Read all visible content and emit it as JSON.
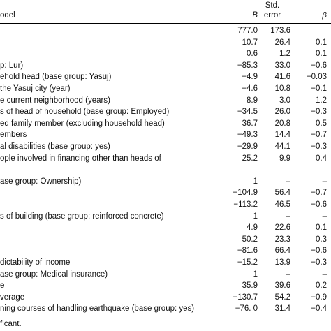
{
  "header": {
    "model": "odel",
    "b": "B",
    "se_line1": "Std.",
    "se_line2": "error",
    "beta": "β"
  },
  "rows": [
    {
      "label": "",
      "b": "777.0",
      "se": "173.6",
      "beta": ""
    },
    {
      "label": "",
      "b": "10.7",
      "se": "26.4",
      "beta": "0.1"
    },
    {
      "label": "",
      "b": "0.6",
      "se": "1.2",
      "beta": "0.1"
    },
    {
      "label": "p: Lur)",
      "b": "−85.3",
      "se": "33.0",
      "beta": "−0.6"
    },
    {
      "label": "ehold head (base group: Yasuj)",
      "b": "−4.9",
      "se": "41.6",
      "beta": "−0.03"
    },
    {
      "label": " the Yasuj city (year)",
      "b": "−4.6",
      "se": "10.8",
      "beta": "−0.1"
    },
    {
      "label": "e current neighborhood (years)",
      "b": "8.9",
      "se": "3.0",
      "beta": "1.2"
    },
    {
      "label": "s of head of household (base group: Employed)",
      "b": "−34.5",
      "se": "26.0",
      "beta": "−0.3"
    },
    {
      "label": "ed family member (excluding household head)",
      "b": "36.7",
      "se": "20.8",
      "beta": "0.5"
    },
    {
      "label": "embers",
      "b": "−49.3",
      "se": "14.4",
      "beta": "−0.7"
    },
    {
      "label": "al disabilities (base group: yes)",
      "b": "−29.9",
      "se": "44.1",
      "beta": "−0.3"
    },
    {
      "label": "ople involved in financing other than heads of",
      "b": "25.2",
      "se": "9.9",
      "beta": "0.4"
    },
    {
      "label": "",
      "b": "",
      "se": "",
      "beta": ""
    },
    {
      "label": "ase group: Ownership)",
      "b": "1",
      "se": "–",
      "beta": "–"
    },
    {
      "label": "",
      "b": "−104.9",
      "se": "56.4",
      "beta": "−0.7"
    },
    {
      "label": "",
      "b": "−113.2",
      "se": "46.5",
      "beta": "−0.6"
    },
    {
      "label": "s of building (base group: reinforced concrete)",
      "b": "1",
      "se": "–",
      "beta": "–"
    },
    {
      "label": "",
      "b": "4.9",
      "se": "22.6",
      "beta": "0.1"
    },
    {
      "label": "",
      "b": "50.2",
      "se": "23.3",
      "beta": "0.3"
    },
    {
      "label": "",
      "b": "−81.6",
      "se": "66.4",
      "beta": "−0.6"
    },
    {
      "label": "dictability of income",
      "b": "−15.2",
      "se": "13.9",
      "beta": "−0.3"
    },
    {
      "label": "ase group: Medical insurance)",
      "b": "1",
      "se": "–",
      "beta": "–"
    },
    {
      "label": "e",
      "b": "35.9",
      "se": "39.6",
      "beta": "0.2"
    },
    {
      "label": "verage",
      "b": "−130.7",
      "se": "54.2",
      "beta": "−0.9"
    },
    {
      "label": "ning courses of handling earthquake (base group: yes)",
      "b": "−76. 0",
      "se": "31.4",
      "beta": "−0.4"
    }
  ],
  "footnote": "ficant."
}
